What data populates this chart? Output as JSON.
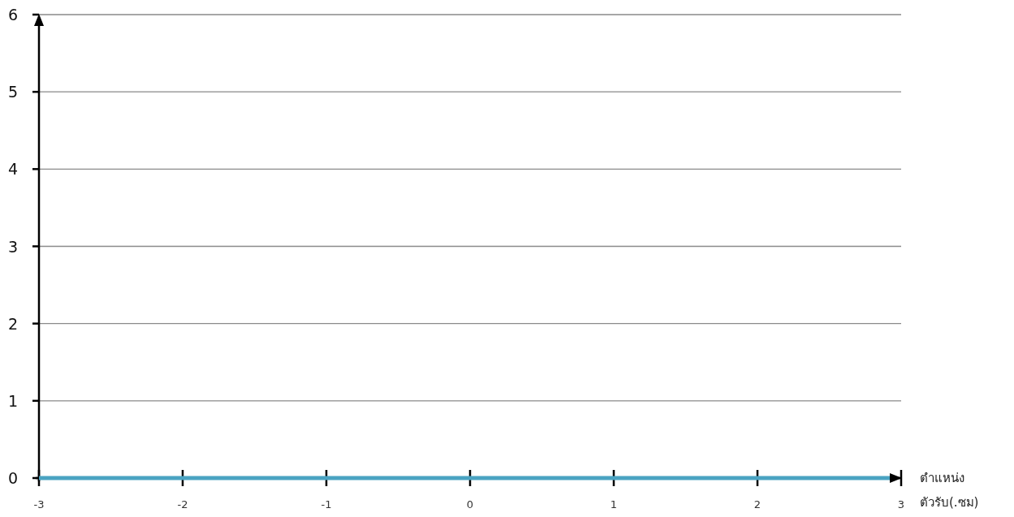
{
  "chart_data": {
    "type": "line",
    "xlabel": "ตำแหน่ง\nตัวรับ(.ซม)",
    "ref_lines": [
      {
        "axis": "y",
        "value": 0,
        "color": "#4aa3c2"
      }
    ],
    "xlim": [
      -3,
      3
    ],
    "xticks": [
      -3,
      -2,
      -1,
      0,
      1,
      2,
      3
    ],
    "ylim": [
      0,
      6
    ],
    "yticks": [
      0,
      1,
      2,
      3,
      4,
      5,
      6
    ],
    "grid": "y"
  }
}
